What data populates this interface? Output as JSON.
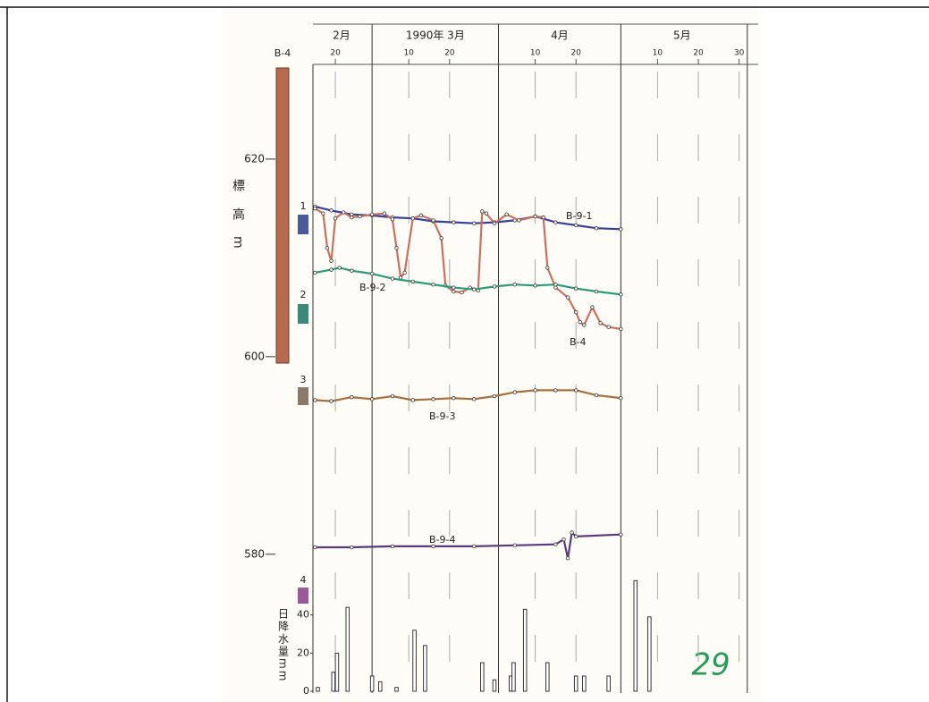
{
  "chart_data": [
    {
      "type": "line",
      "y_label": "標高m",
      "month_labels": [
        {
          "value": 52.5,
          "label": "2月"
        },
        {
          "value": 75.5,
          "label": "1990年 3月"
        },
        {
          "value": 106,
          "label": "4月"
        },
        {
          "value": 136,
          "label": "5月"
        }
      ],
      "month_bounds": [
        60,
        91,
        121,
        152
      ],
      "xlim": [
        45.5,
        156
      ],
      "xticks": [
        {
          "value": 51,
          "label": "20"
        },
        {
          "value": 69,
          "label": "10"
        },
        {
          "value": 79,
          "label": "20"
        },
        {
          "value": 100,
          "label": "10"
        },
        {
          "value": 110,
          "label": "20"
        },
        {
          "value": 130,
          "label": "10"
        },
        {
          "value": 140,
          "label": "20"
        },
        {
          "value": 150,
          "label": "30"
        }
      ],
      "ylim": [
        575,
        629
      ],
      "yticks": [
        580,
        600,
        620
      ],
      "series": [
        {
          "name": "B-9-1",
          "color": "#3b3f9c",
          "x": [
            46,
            50,
            55,
            60,
            65,
            70,
            75,
            80,
            85,
            90,
            95,
            100,
            105,
            110,
            115,
            121
          ],
          "values": [
            615.2,
            614.8,
            614.4,
            614.3,
            614.1,
            614.0,
            613.7,
            613.6,
            613.5,
            613.6,
            613.8,
            614.2,
            613.6,
            613.3,
            613.0,
            612.9
          ]
        },
        {
          "name": "B-4",
          "color": "#c9705e",
          "x": [
            46,
            48,
            49,
            50,
            51,
            53,
            55,
            57,
            60,
            63,
            65,
            66,
            67,
            68,
            70,
            72,
            75,
            77,
            78,
            80,
            82,
            84,
            86,
            87,
            88,
            90,
            93,
            96,
            100,
            102,
            103,
            105,
            108,
            110,
            111,
            112,
            114,
            116,
            118,
            121
          ],
          "values": [
            615.0,
            614.5,
            611.0,
            609.7,
            614.0,
            614.6,
            614.1,
            614.2,
            614.4,
            614.5,
            613.9,
            611.0,
            608.0,
            608.5,
            614.0,
            614.3,
            613.8,
            612.0,
            607.2,
            606.6,
            606.5,
            607.0,
            606.7,
            614.7,
            614.5,
            613.5,
            614.4,
            613.8,
            614.2,
            614.1,
            609.0,
            607.0,
            606.0,
            604.5,
            603.5,
            603.2,
            605.0,
            603.4,
            603.0,
            602.8
          ]
        },
        {
          "name": "B-9-2",
          "color": "#2a9a7a",
          "x": [
            46,
            50,
            52,
            55,
            60,
            65,
            70,
            75,
            80,
            85,
            90,
            95,
            100,
            105,
            110,
            115,
            121
          ],
          "values": [
            608.5,
            608.8,
            609.0,
            608.7,
            608.4,
            607.9,
            607.6,
            607.3,
            607.0,
            606.8,
            607.1,
            607.3,
            607.2,
            607.3,
            606.9,
            606.6,
            606.3
          ]
        },
        {
          "name": "B-9-3",
          "color": "#a8703e",
          "x": [
            46,
            50,
            55,
            60,
            65,
            70,
            75,
            80,
            85,
            90,
            95,
            100,
            105,
            110,
            115,
            121
          ],
          "values": [
            595.6,
            595.5,
            595.9,
            595.7,
            596.0,
            595.6,
            595.7,
            595.8,
            595.7,
            596.0,
            596.4,
            596.6,
            596.6,
            596.6,
            596.1,
            595.8
          ]
        },
        {
          "name": "B-9-4",
          "color": "#5a3a7a",
          "x": [
            46,
            55,
            65,
            75,
            85,
            95,
            105,
            107,
            108,
            109,
            110,
            121
          ],
          "values": [
            580.7,
            580.7,
            580.8,
            580.8,
            580.8,
            580.9,
            581.0,
            581.5,
            579.6,
            582.2,
            581.8,
            582.0
          ]
        }
      ]
    },
    {
      "type": "bar",
      "y_label": "日降水量mm",
      "color": "#ffffff",
      "xlim": [
        45.5,
        156
      ],
      "ylim": [
        0,
        60
      ],
      "yticks": [
        0,
        20,
        40
      ],
      "x": [
        46.7,
        50.5,
        51.4,
        54,
        60,
        62,
        66,
        70.4,
        73,
        87,
        90,
        94,
        94.7,
        97.5,
        103,
        110,
        112,
        118,
        124.6,
        128
      ],
      "values": [
        2,
        10,
        20,
        44,
        8,
        5,
        2,
        32,
        24,
        15,
        6,
        8,
        15,
        43,
        15,
        8,
        8,
        8,
        58,
        39
      ]
    }
  ],
  "document": {
    "column_title": "B-4",
    "well_numbers": [
      "1",
      "2",
      "3",
      "4"
    ],
    "page_number": "29"
  }
}
